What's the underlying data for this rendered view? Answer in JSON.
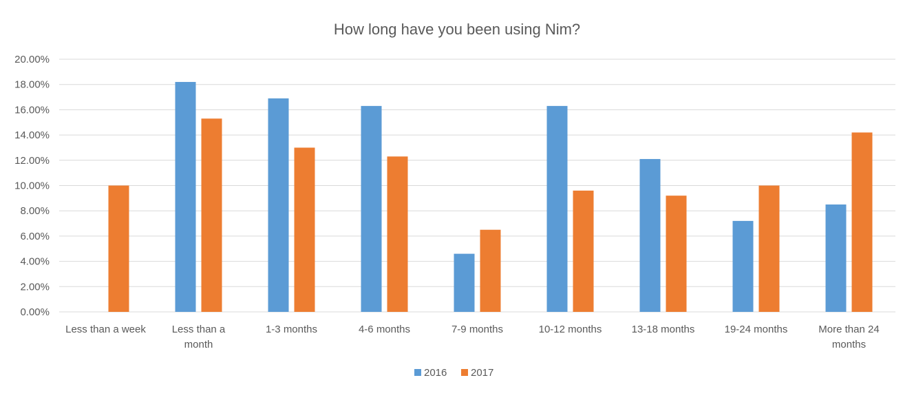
{
  "chart_data": {
    "type": "bar",
    "title": "How long have you been using Nim?",
    "xlabel": "",
    "ylabel": "",
    "ylim": [
      0,
      20
    ],
    "y_ticks": [
      "0.00%",
      "2.00%",
      "4.00%",
      "6.00%",
      "8.00%",
      "10.00%",
      "12.00%",
      "14.00%",
      "16.00%",
      "18.00%",
      "20.00%"
    ],
    "categories": [
      "Less than a week",
      "Less than a month",
      "1-3 months",
      "4-6 months",
      "7-9 months",
      "10-12 months",
      "13-18 months",
      "19-24 months",
      "More than 24 months"
    ],
    "series": [
      {
        "name": "2016",
        "color": "#5b9bd5",
        "values": [
          0,
          18.2,
          16.9,
          16.3,
          4.6,
          16.3,
          12.1,
          7.2,
          8.5
        ]
      },
      {
        "name": "2017",
        "color": "#ed7d31",
        "values": [
          10.0,
          15.3,
          13.0,
          12.3,
          6.5,
          9.6,
          9.2,
          10.0,
          14.2
        ]
      }
    ],
    "grid": true,
    "legend_position": "bottom"
  }
}
